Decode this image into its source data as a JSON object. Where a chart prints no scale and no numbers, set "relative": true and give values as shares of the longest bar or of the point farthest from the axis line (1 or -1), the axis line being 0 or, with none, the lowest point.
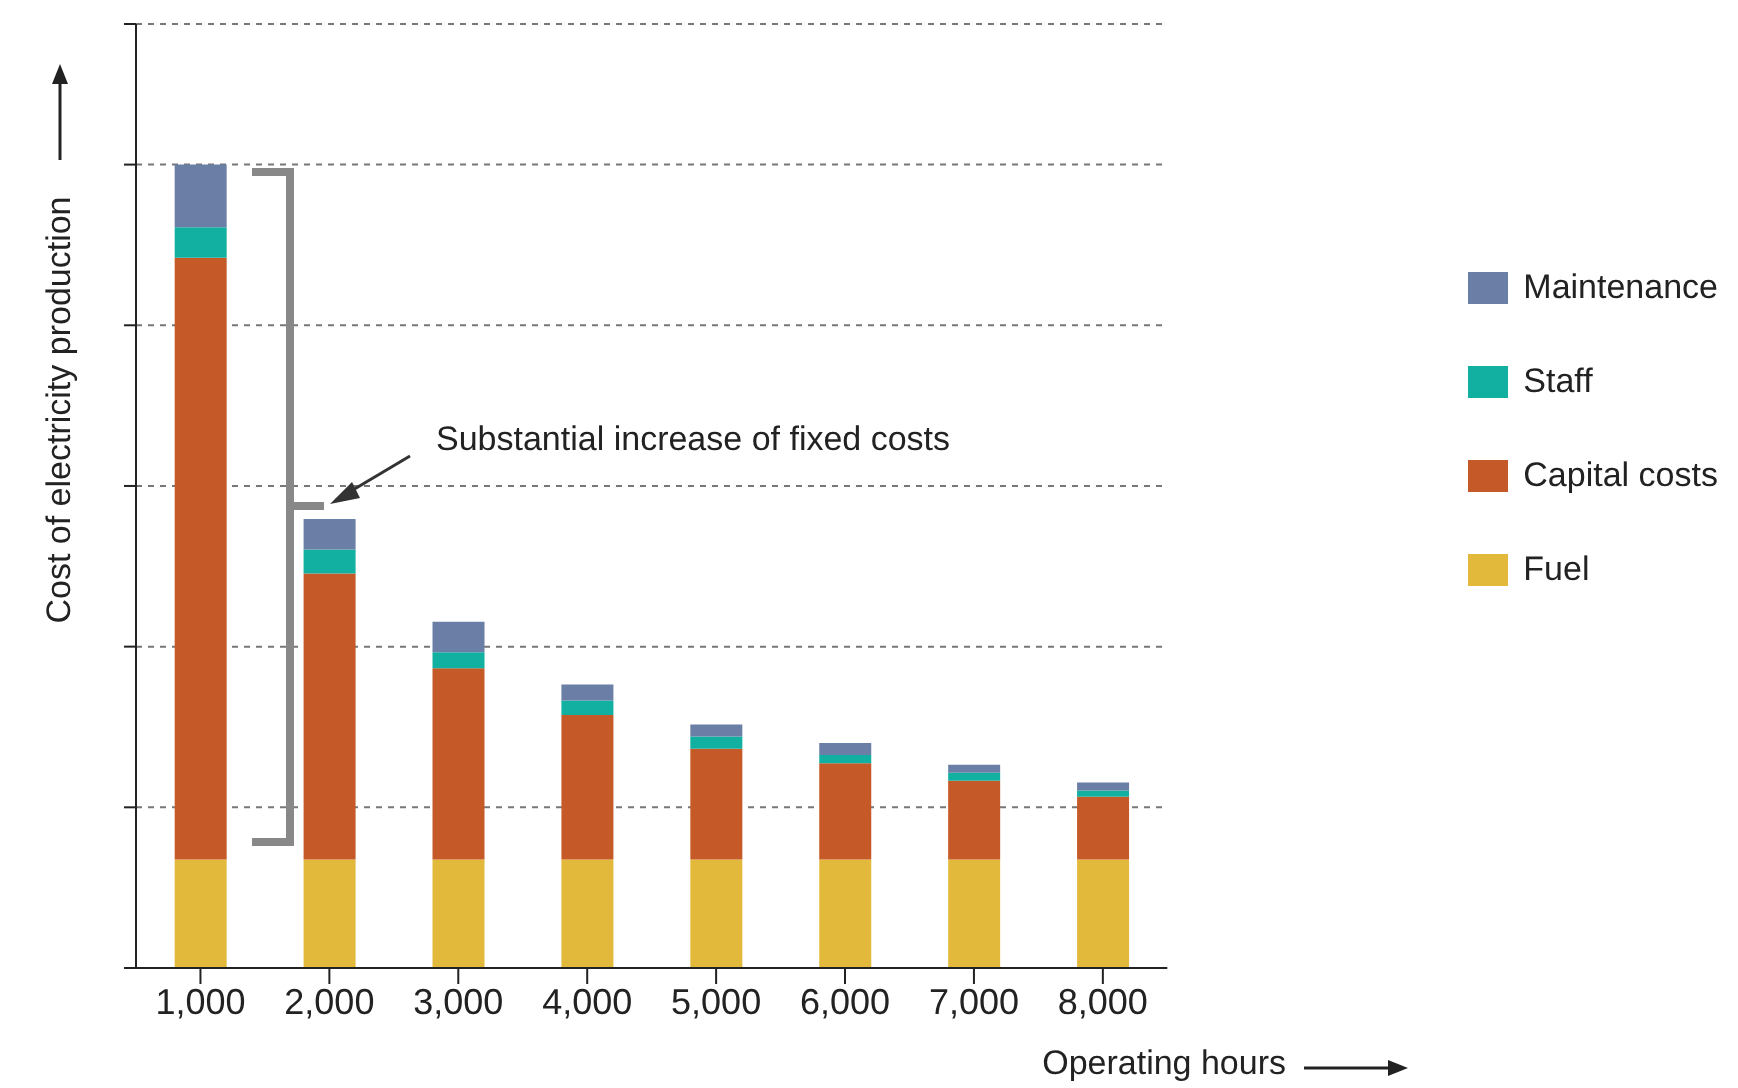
{
  "chart_data": {
    "type": "bar",
    "stacked": true,
    "relative": true,
    "xlabel": "Operating hours",
    "ylabel": "Cost of electricity production",
    "categories": [
      "1,000",
      "2,000",
      "3,000",
      "4,000",
      "5,000",
      "6,000",
      "7,000",
      "8,000"
    ],
    "series": [
      {
        "name": "Fuel",
        "color": "#e2b93b",
        "values": [
          0.135,
          0.135,
          0.135,
          0.135,
          0.135,
          0.135,
          0.135,
          0.135
        ]
      },
      {
        "name": "Capital costs",
        "color": "#c55a28",
        "values": [
          0.749,
          0.356,
          0.238,
          0.18,
          0.138,
          0.12,
          0.098,
          0.078
        ]
      },
      {
        "name": "Staff",
        "color": "#12b0a0",
        "values": [
          0.038,
          0.03,
          0.02,
          0.018,
          0.015,
          0.01,
          0.01,
          0.008
        ]
      },
      {
        "name": "Maintenance",
        "color": "#6b7fa6",
        "values": [
          0.078,
          0.038,
          0.038,
          0.02,
          0.015,
          0.015,
          0.01,
          0.01
        ]
      }
    ],
    "annotations": [
      "Substantial increase of fixed costs"
    ],
    "grid": "y",
    "legend": "right"
  }
}
